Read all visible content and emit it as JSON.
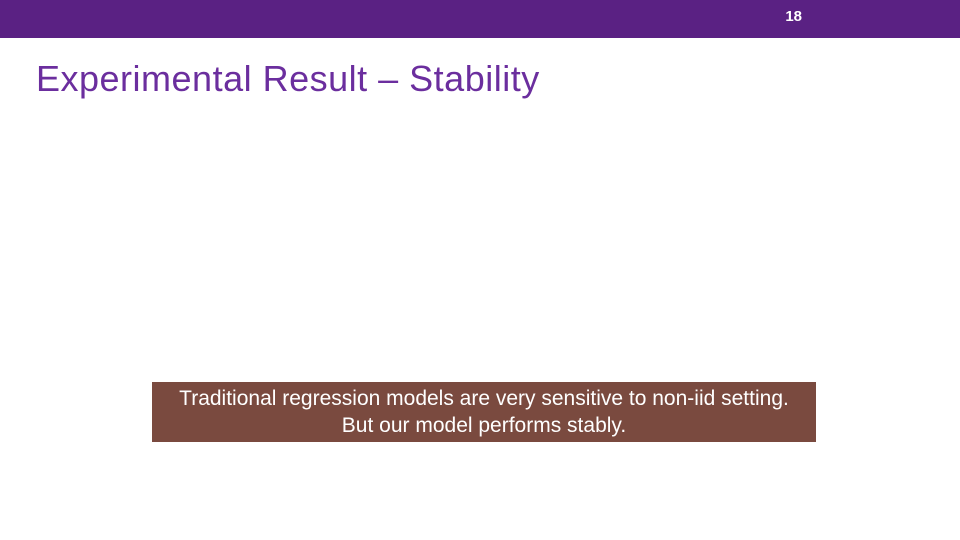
{
  "header": {
    "page_number": "18",
    "bar_color": "#5a2183",
    "text_color": "#ffffff"
  },
  "title": {
    "text": "Experimental Result – Stability",
    "color": "#6b2e9e",
    "fontsize": 36
  },
  "callout": {
    "text": "Traditional regression models are very sensitive to non-iid setting. But our model performs stably.",
    "background_color": "#7a4a3f",
    "text_color": "#ffffff",
    "fontsize": 21
  },
  "background_color": "#ffffff"
}
